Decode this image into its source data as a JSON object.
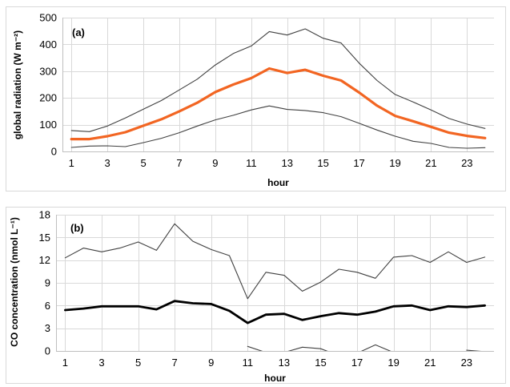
{
  "colors": {
    "frame": "#d9d9d9",
    "grid": "#d9d9d9",
    "axis": "#bfbfbf",
    "envelope": "#404040",
    "mean_a": "#f26522",
    "mean_b": "#000000",
    "text": "#000000"
  },
  "chart_data": [
    {
      "type": "line",
      "panel_label": "(a)",
      "xlabel": "hour",
      "ylabel": "global radiation  (W m⁻²)",
      "x": [
        1,
        2,
        3,
        4,
        5,
        6,
        7,
        8,
        9,
        10,
        11,
        12,
        13,
        14,
        15,
        16,
        17,
        18,
        19,
        20,
        21,
        22,
        23,
        24
      ],
      "x_ticks": [
        1,
        3,
        5,
        7,
        9,
        11,
        13,
        15,
        17,
        19,
        21,
        23
      ],
      "ylim": [
        0,
        500
      ],
      "y_ticks": [
        0,
        100,
        200,
        300,
        400,
        500
      ],
      "grid": true,
      "series": [
        {
          "role": "upper",
          "values": [
            78,
            74,
            95,
            125,
            158,
            190,
            230,
            270,
            323,
            366,
            394,
            448,
            435,
            458,
            423,
            405,
            330,
            265,
            213,
            185,
            155,
            123,
            102,
            86
          ]
        },
        {
          "role": "mean",
          "values": [
            46,
            46,
            57,
            72,
            96,
            120,
            150,
            182,
            222,
            250,
            274,
            310,
            293,
            305,
            283,
            265,
            220,
            171,
            133,
            113,
            92,
            70,
            58,
            50
          ]
        },
        {
          "role": "lower",
          "values": [
            15,
            20,
            21,
            18,
            33,
            49,
            70,
            95,
            118,
            135,
            155,
            170,
            157,
            153,
            145,
            130,
            105,
            80,
            57,
            38,
            30,
            15,
            12,
            14
          ]
        }
      ]
    },
    {
      "type": "line",
      "panel_label": "(b)",
      "xlabel": "hour",
      "ylabel": "CO concentration  (nmol L⁻¹)",
      "x": [
        1,
        2,
        3,
        4,
        5,
        6,
        7,
        8,
        9,
        10,
        11,
        12,
        13,
        14,
        15,
        16,
        17,
        18,
        19,
        20,
        21,
        22,
        23,
        24
      ],
      "x_ticks": [
        1,
        3,
        5,
        7,
        9,
        11,
        13,
        15,
        17,
        19,
        21,
        23
      ],
      "ylim": [
        0,
        18
      ],
      "y_ticks": [
        0,
        3,
        6,
        9,
        12,
        15,
        18
      ],
      "grid": true,
      "series": [
        {
          "role": "upper",
          "values": [
            12.3,
            13.6,
            13.1,
            13.6,
            14.4,
            13.3,
            16.8,
            14.5,
            13.4,
            12.6,
            6.9,
            10.4,
            10.0,
            7.9,
            9.1,
            10.8,
            10.4,
            9.6,
            12.4,
            12.6,
            11.7,
            13.1,
            11.7,
            12.4
          ]
        },
        {
          "role": "mean",
          "values": [
            5.4,
            5.6,
            5.9,
            5.9,
            5.9,
            5.5,
            6.6,
            6.3,
            6.2,
            5.3,
            3.7,
            4.8,
            4.9,
            4.1,
            4.6,
            5.0,
            4.8,
            5.2,
            5.9,
            6.0,
            5.4,
            5.9,
            5.8,
            6.0
          ]
        },
        {
          "role": "lower",
          "values": [
            null,
            null,
            null,
            null,
            null,
            null,
            null,
            null,
            null,
            null,
            0.6,
            -0.2,
            -0.2,
            0.5,
            0.3,
            -0.6,
            -0.3,
            0.8,
            -0.2,
            null,
            null,
            null,
            0.1,
            -0.1
          ]
        }
      ]
    }
  ]
}
